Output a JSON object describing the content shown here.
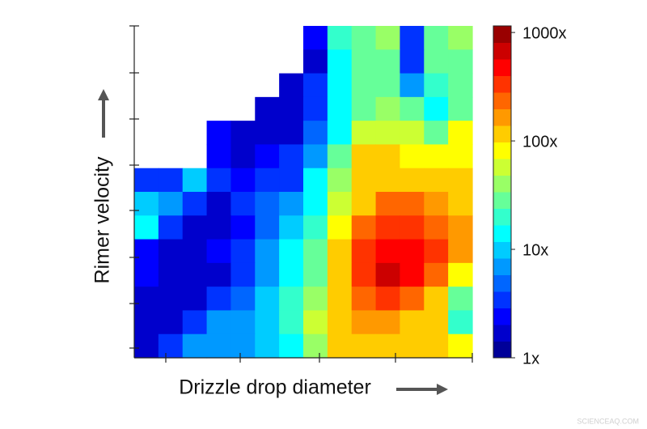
{
  "chart_data": {
    "type": "heatmap",
    "xlabel": "Drizzle drop diameter",
    "ylabel": "Rimer velocity",
    "color_scale": "jet",
    "color_log": true,
    "color_levels": 20,
    "zlim": [
      1,
      1150
    ],
    "zticks": [
      {
        "value": 1,
        "label": "1x"
      },
      {
        "value": 10,
        "label": "10x"
      },
      {
        "value": 100,
        "label": "100x"
      },
      {
        "value": 1000,
        "label": "1000x"
      }
    ],
    "values": [
      [
        null,
        null,
        null,
        null,
        null,
        null,
        null,
        2.5,
        20,
        32,
        40,
        3.2,
        32,
        40
      ],
      [
        null,
        null,
        null,
        null,
        null,
        null,
        null,
        2,
        16,
        32,
        25,
        4,
        25,
        32
      ],
      [
        null,
        null,
        null,
        null,
        null,
        null,
        1.6,
        3.2,
        13,
        32,
        32,
        6.3,
        20,
        25
      ],
      [
        null,
        null,
        null,
        null,
        null,
        1.6,
        2,
        4,
        13,
        32,
        40,
        25,
        16,
        32
      ],
      [
        null,
        null,
        null,
        2.5,
        1.6,
        1.6,
        2,
        5,
        16,
        63,
        63,
        50,
        32,
        80
      ],
      [
        null,
        null,
        null,
        2.5,
        2,
        2.5,
        3.2,
        8,
        25,
        126,
        100,
        80,
        80,
        80
      ],
      [
        3.2,
        3.2,
        10,
        4,
        2.5,
        3.2,
        4,
        13,
        40,
        126,
        126,
        126,
        126,
        100
      ],
      [
        10,
        6.3,
        3.2,
        2,
        3.2,
        5,
        6.3,
        16,
        63,
        126,
        200,
        200,
        158,
        126
      ],
      [
        16,
        4,
        2,
        2,
        2.5,
        5,
        10,
        20,
        80,
        200,
        316,
        316,
        250,
        158
      ],
      [
        2.5,
        2,
        1.6,
        2.5,
        3.2,
        8,
        13,
        25,
        100,
        316,
        500,
        400,
        316,
        158
      ],
      [
        2.5,
        2,
        1.6,
        2,
        4,
        8,
        16,
        32,
        126,
        316,
        700,
        400,
        200,
        80
      ],
      [
        2,
        1.6,
        2,
        4,
        5,
        10,
        20,
        40,
        126,
        250,
        316,
        200,
        100,
        25
      ],
      [
        1.6,
        2,
        4,
        8,
        6.3,
        10,
        20,
        50,
        126,
        158,
        158,
        126,
        100,
        20
      ],
      [
        2,
        3.2,
        6.3,
        8,
        8,
        10,
        16,
        40,
        100,
        126,
        126,
        126,
        100,
        80
      ]
    ],
    "watermark": "SCIENCEAQ.COM"
  }
}
